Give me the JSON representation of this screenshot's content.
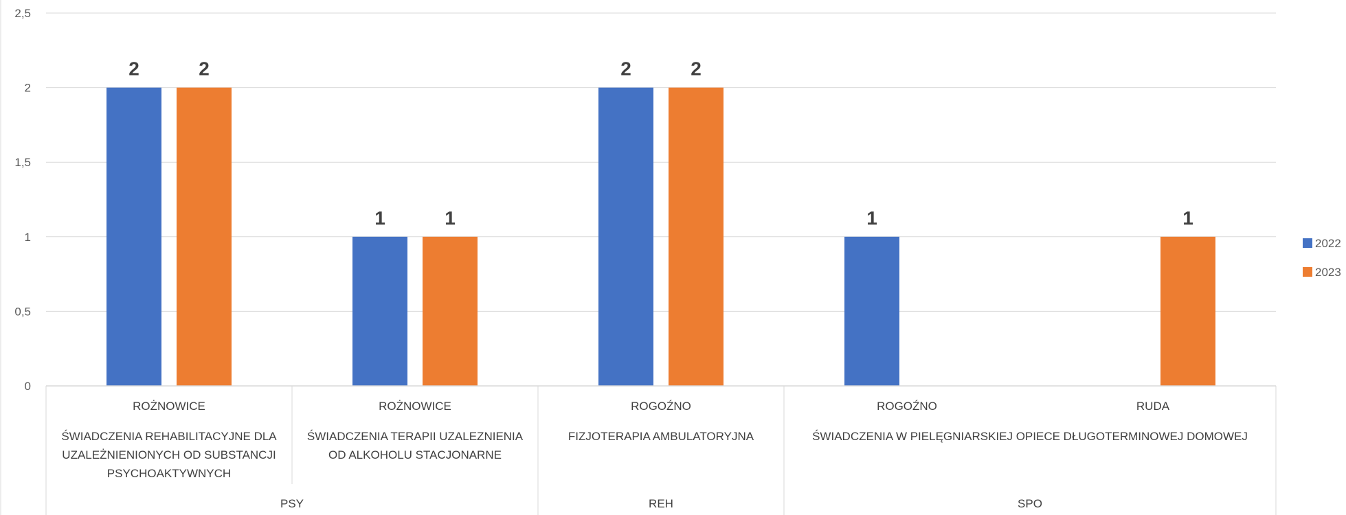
{
  "chart_data": {
    "type": "bar",
    "ylim": [
      0,
      2.5
    ],
    "y_ticks": [
      "0",
      "0,5",
      "1",
      "1,5",
      "2",
      "2,5"
    ],
    "grid": true,
    "legend_position": "right",
    "groups": [
      {
        "label": "PSY",
        "categories": [
          {
            "location": "ROŻNOWICE",
            "service_lines": [
              "ŚWIADCZENIA REHABILITACYJNE DLA",
              "UZALEŻNIENIONYCH OD SUBSTANCJI",
              "PSYCHOAKTYWNYCH"
            ]
          },
          {
            "location": "ROŻNOWICE",
            "service_lines": [
              "ŚWIADCZENIA TERAPII UZALEZNIENIA",
              "OD ALKOHOLU STACJONARNE"
            ]
          }
        ]
      },
      {
        "label": "REH",
        "categories": [
          {
            "location": "ROGOŹNO",
            "service_lines": [
              "FIZJOTERAPIA AMBULATORYJNA"
            ]
          }
        ]
      },
      {
        "label": "SPO",
        "categories": [
          {
            "location": "ROGOŹNO",
            "service_lines": []
          },
          {
            "location": "RUDA",
            "service_lines": []
          }
        ],
        "shared_service_lines": [
          "ŚWIADCZENIA W PIELĘGNIARSKIEJ OPIECE DŁUGOTERMINOWEJ DOMOWEJ"
        ]
      }
    ],
    "series": [
      {
        "name": "2022",
        "color": "#4472C4",
        "values": [
          2,
          1,
          2,
          1,
          null
        ],
        "data_labels": [
          "2",
          "1",
          "2",
          "1",
          ""
        ]
      },
      {
        "name": "2023",
        "color": "#ED7D31",
        "values": [
          2,
          1,
          2,
          null,
          1
        ],
        "data_labels": [
          "2",
          "1",
          "2",
          "",
          "1"
        ]
      }
    ]
  }
}
